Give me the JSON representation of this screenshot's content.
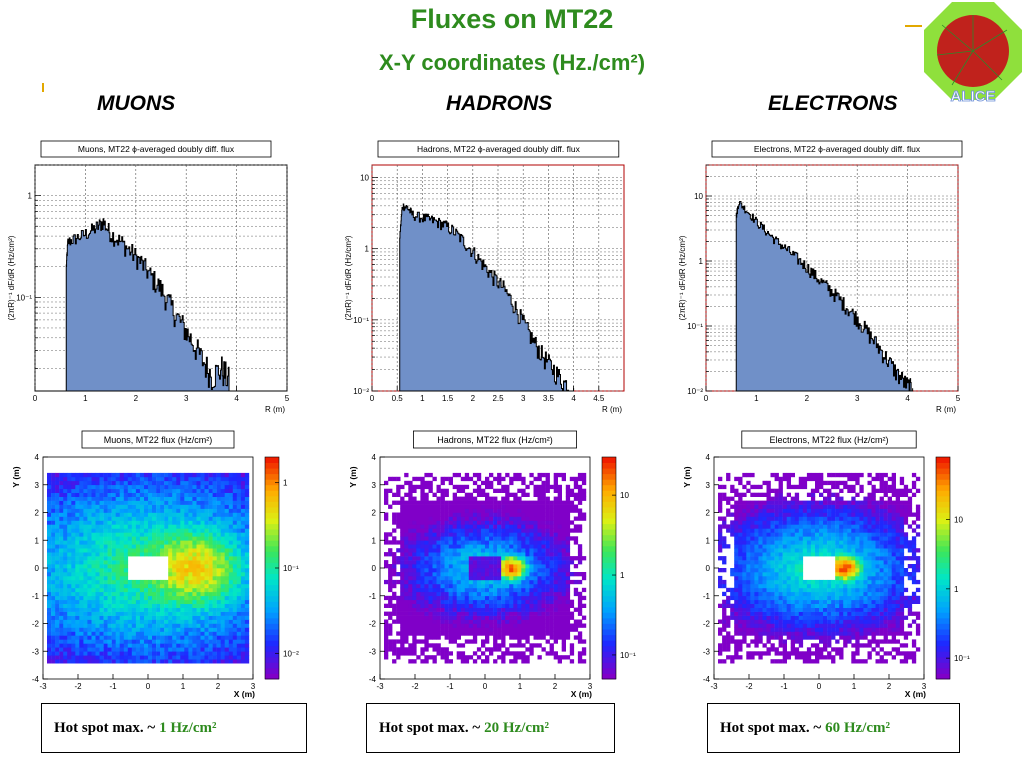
{
  "slide": {
    "title": "Fluxes on MT22",
    "subtitle": "X-Y coordinates (Hz./cm²)",
    "logo_text": "ALICE",
    "columns": [
      "MUONS",
      "HADRONS",
      "ELECTRONS"
    ]
  },
  "colors": {
    "title": "#2e8b1e",
    "hist_fill": "#7090c8",
    "frame_red": "#b00000"
  },
  "hotspots": [
    {
      "label": "Hot spot max. ~",
      "value": "1 Hz/cm²"
    },
    {
      "label": "Hot spot max. ~",
      "value": "20 Hz/cm²"
    },
    {
      "label": "Hot spot max. ~",
      "value": "60 Hz/cm²"
    }
  ],
  "chart_data": [
    {
      "type": "area",
      "title": "Muons, MT22 ϕ-averaged doubly diff. flux",
      "xlabel": "R (m)",
      "ylabel": "(2πR)⁻¹ dF/dR (Hz/cm²)",
      "yscale": "log",
      "xlim": [
        0,
        5
      ],
      "ylim": [
        0.012,
        2
      ],
      "grid": true,
      "xticks": [
        "0",
        "1",
        "2",
        "3",
        "4",
        "5"
      ],
      "yticks": [
        "10⁻¹",
        "1"
      ],
      "x": [
        0.62,
        0.65,
        0.8,
        1.0,
        1.2,
        1.35,
        1.5,
        1.7,
        1.9,
        2.1,
        2.3,
        2.5,
        2.7,
        2.9,
        3.1,
        3.3,
        3.5,
        3.7,
        3.85
      ],
      "y": [
        0.2,
        0.35,
        0.38,
        0.42,
        0.48,
        0.55,
        0.42,
        0.35,
        0.28,
        0.22,
        0.16,
        0.12,
        0.08,
        0.055,
        0.038,
        0.025,
        0.017,
        0.02,
        0.015
      ],
      "line_color": "#000000"
    },
    {
      "type": "area",
      "title": "Hadrons, MT22 ϕ-averaged doubly diff. flux",
      "xlabel": "R (m)",
      "ylabel": "(2πR)⁻¹ dF/dR (Hz/cm²)",
      "yscale": "log",
      "xlim": [
        0,
        5
      ],
      "ylim": [
        0.01,
        15
      ],
      "grid": true,
      "xticks": [
        "0",
        "0.5",
        "1",
        "1.5",
        "2",
        "2.5",
        "3",
        "3.5",
        "4",
        "4.5"
      ],
      "yticks": [
        "10⁻²",
        "10⁻¹",
        "1",
        "10"
      ],
      "x": [
        0.55,
        0.6,
        0.7,
        0.8,
        1.0,
        1.2,
        1.4,
        1.6,
        1.8,
        2.0,
        2.2,
        2.4,
        2.6,
        2.8,
        3.0,
        3.2,
        3.4,
        3.6,
        3.8,
        4.0
      ],
      "y": [
        1.5,
        4.0,
        3.8,
        3.0,
        2.7,
        2.5,
        2.2,
        1.8,
        1.3,
        0.9,
        0.6,
        0.4,
        0.28,
        0.17,
        0.09,
        0.05,
        0.03,
        0.02,
        0.013,
        0.011
      ],
      "line_color": "#000000"
    },
    {
      "type": "area",
      "title": "Electrons, MT22 ϕ-averaged doubly diff. flux",
      "xlabel": "R (m)",
      "ylabel": "(2πR)⁻¹ dF/dR (Hz/cm²)",
      "yscale": "log",
      "xlim": [
        0,
        5
      ],
      "ylim": [
        0.01,
        30
      ],
      "grid": true,
      "xticks": [
        "0",
        "1",
        "2",
        "3",
        "4",
        "5"
      ],
      "yticks": [
        "10⁻²",
        "10⁻¹",
        "1",
        "10"
      ],
      "x": [
        0.6,
        0.65,
        0.8,
        1.0,
        1.2,
        1.4,
        1.6,
        1.8,
        2.0,
        2.2,
        2.4,
        2.6,
        2.8,
        3.0,
        3.2,
        3.4,
        3.6,
        3.8,
        4.0,
        4.1
      ],
      "y": [
        5.0,
        8.0,
        6.0,
        4.0,
        2.8,
        2.0,
        1.5,
        1.1,
        0.8,
        0.55,
        0.4,
        0.28,
        0.19,
        0.13,
        0.08,
        0.05,
        0.03,
        0.018,
        0.012,
        0.011
      ],
      "line_color": "#000000"
    },
    {
      "type": "heatmap",
      "title": "Muons, MT22 flux (Hz/cm²)",
      "xlabel": "X (m)",
      "ylabel": "Y (m)",
      "xlim": [
        -3,
        3
      ],
      "ylim": [
        -4,
        4
      ],
      "xticks": [
        "-3",
        "-2",
        "-1",
        "0",
        "1",
        "2",
        "3"
      ],
      "yticks": [
        "-4",
        "-3",
        "-2",
        "-1",
        "0",
        "1",
        "2",
        "3",
        "4"
      ],
      "zscale": "log",
      "zrange": [
        0.005,
        2
      ],
      "colorbar_ticks": [
        "10⁻²",
        "10⁻¹",
        "1"
      ],
      "hole": {
        "x": [
          -0.6,
          0.6
        ],
        "y": [
          -0.45,
          0.45
        ]
      },
      "hotspot": {
        "x": 1.3,
        "y": 0.0,
        "max": 1
      }
    },
    {
      "type": "heatmap",
      "title": "Hadrons, MT22 flux (Hz/cm²)",
      "xlabel": "X (m)",
      "ylabel": "Y (m)",
      "xlim": [
        -3,
        3
      ],
      "ylim": [
        -4,
        4
      ],
      "xticks": [
        "-3",
        "-2",
        "-1",
        "0",
        "1",
        "2",
        "3"
      ],
      "yticks": [
        "-4",
        "-3",
        "-2",
        "-1",
        "0",
        "1",
        "2",
        "3",
        "4"
      ],
      "zscale": "log",
      "zrange": [
        0.05,
        30
      ],
      "colorbar_ticks": [
        "10⁻¹",
        "1",
        "10"
      ],
      "hole": {
        "x": [
          -0.4,
          0.4
        ],
        "y": [
          -0.4,
          0.4
        ]
      },
      "hotspot": {
        "x": 0.75,
        "y": 0.0,
        "max": 20
      }
    },
    {
      "type": "heatmap",
      "title": "Electrons, MT22 flux (Hz/cm²)",
      "xlabel": "X (m)",
      "ylabel": "Y (m)",
      "xlim": [
        -3,
        3
      ],
      "ylim": [
        -4,
        4
      ],
      "xticks": [
        "-3",
        "-2",
        "-1",
        "0",
        "1",
        "2",
        "3"
      ],
      "yticks": [
        "-4",
        "-3",
        "-2",
        "-1",
        "0",
        "1",
        "2",
        "3",
        "4"
      ],
      "zscale": "log",
      "zrange": [
        0.05,
        80
      ],
      "colorbar_ticks": [
        "10⁻¹",
        "1",
        "10"
      ],
      "hole": {
        "x": [
          -0.5,
          0.5
        ],
        "y": [
          -0.4,
          0.4
        ]
      },
      "hotspot": {
        "x": 0.75,
        "y": 0.0,
        "max": 60
      }
    }
  ]
}
